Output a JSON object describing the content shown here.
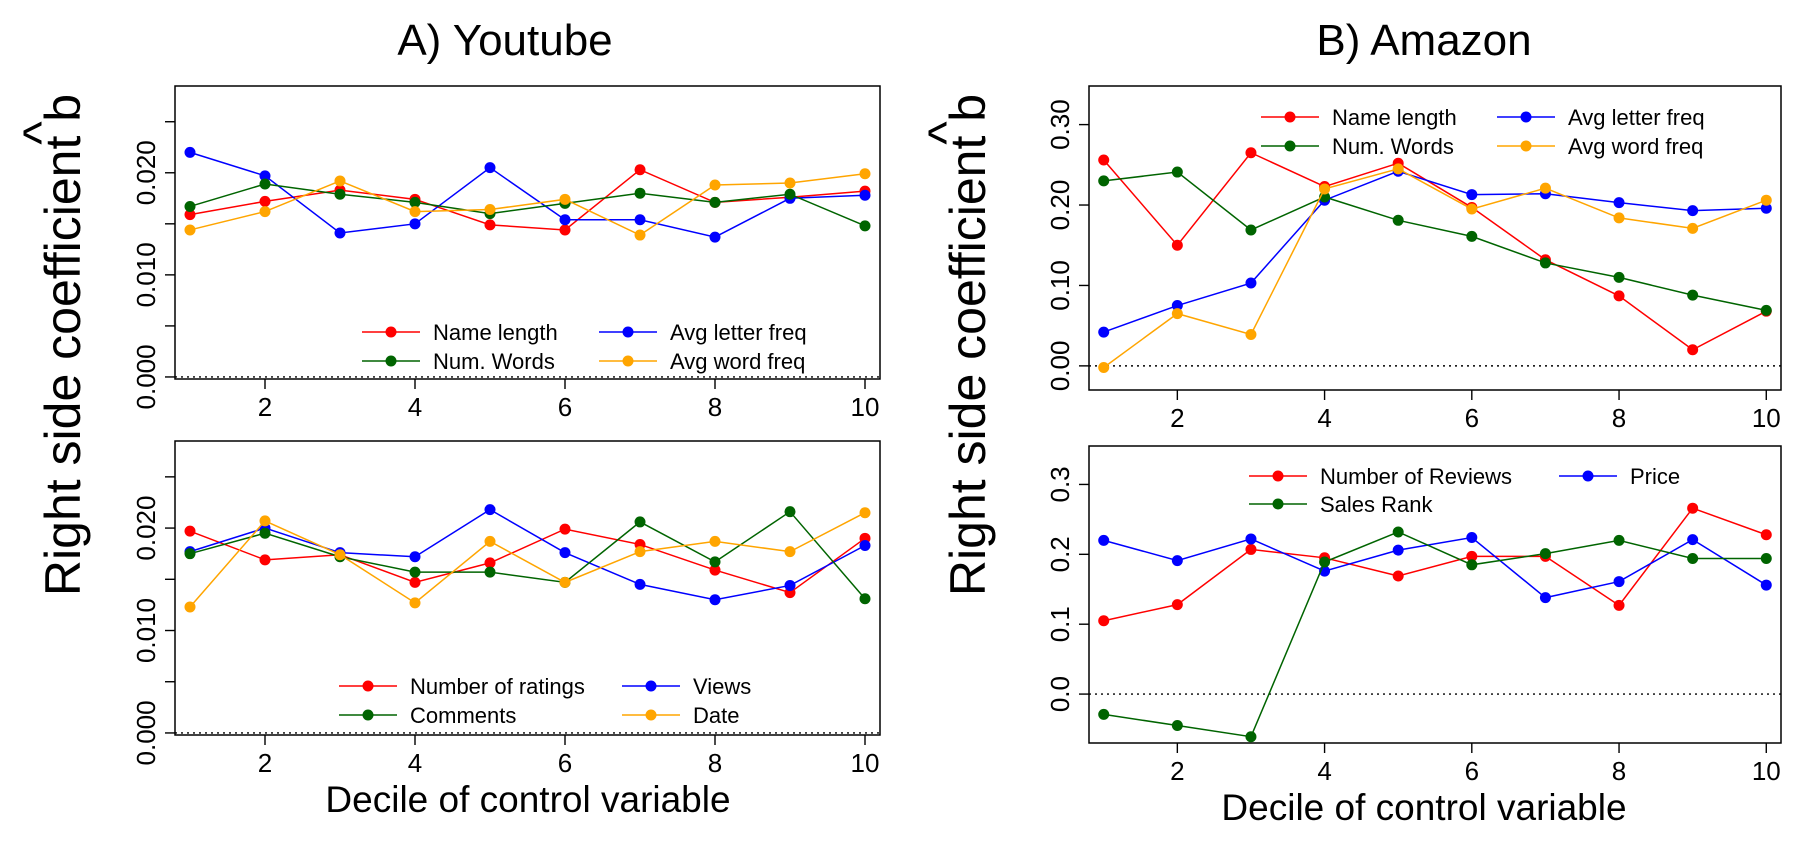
{
  "figure": {
    "panel_titles": [
      "A)  Youtube",
      "B)  Amazon"
    ],
    "ylabel": "Right side coefficient b",
    "ylabel_hat": "^",
    "xlabel": "Decile of control variable"
  },
  "colors": {
    "red": "#ff0000",
    "blue": "#0000ff",
    "green": "#006400",
    "orange": "#ffa500"
  },
  "chart_data": [
    {
      "panel": "youtube-top",
      "type": "line",
      "x": [
        1,
        2,
        3,
        4,
        5,
        6,
        7,
        8,
        9,
        10
      ],
      "xticks": [
        2,
        4,
        6,
        8,
        10
      ],
      "xtick_labels": [
        "2",
        "4",
        "6",
        "8",
        "10"
      ],
      "xlim": [
        0.8,
        10.2
      ],
      "yticks": [
        0.0,
        0.005,
        0.01,
        0.015,
        0.02,
        0.025
      ],
      "ytick_labels": [
        "0.000",
        "",
        "0.010",
        "",
        "0.020",
        ""
      ],
      "ylim": [
        -0.0002,
        0.0285
      ],
      "reference_line": 0,
      "legend_position": "bottom-right",
      "legend_columns": 2,
      "series": [
        {
          "name": "Name length",
          "color": "#ff0000",
          "values": [
            0.0159,
            0.0172,
            0.0183,
            0.0174,
            0.0149,
            0.0144,
            0.0203,
            0.0171,
            0.0176,
            0.0182
          ]
        },
        {
          "name": "Avg letter freq",
          "color": "#0000ff",
          "values": [
            0.022,
            0.0197,
            0.0141,
            0.015,
            0.0205,
            0.0154,
            0.0154,
            0.0137,
            0.0175,
            0.0178
          ]
        },
        {
          "name": "Num. Words",
          "color": "#006400",
          "values": [
            0.0167,
            0.0189,
            0.0179,
            0.0171,
            0.016,
            0.017,
            0.018,
            0.0171,
            0.0179,
            0.0148
          ]
        },
        {
          "name": "Avg word freq",
          "color": "#ffa500",
          "values": [
            0.0144,
            0.0162,
            0.0192,
            0.0162,
            0.0164,
            0.0174,
            0.0139,
            0.0188,
            0.019,
            0.0199
          ]
        }
      ]
    },
    {
      "panel": "youtube-bottom",
      "type": "line",
      "x": [
        1,
        2,
        3,
        4,
        5,
        6,
        7,
        8,
        9,
        10
      ],
      "xticks": [
        2,
        4,
        6,
        8,
        10
      ],
      "xtick_labels": [
        "2",
        "4",
        "6",
        "8",
        "10"
      ],
      "xlim": [
        0.8,
        10.2
      ],
      "yticks": [
        0.0,
        0.005,
        0.01,
        0.015,
        0.02,
        0.025
      ],
      "ytick_labels": [
        "0.000",
        "",
        "0.010",
        "",
        "0.020",
        ""
      ],
      "ylim": [
        -0.0002,
        0.0285
      ],
      "reference_line": 0,
      "legend_position": "bottom-right",
      "legend_columns": 2,
      "series": [
        {
          "name": "Number of ratings",
          "color": "#ff0000",
          "values": [
            0.0197,
            0.0169,
            0.0174,
            0.0147,
            0.0166,
            0.0199,
            0.0184,
            0.0159,
            0.0137,
            0.019
          ]
        },
        {
          "name": "Views",
          "color": "#0000ff",
          "values": [
            0.0177,
            0.02,
            0.0176,
            0.0172,
            0.0218,
            0.0176,
            0.0145,
            0.013,
            0.0144,
            0.0183
          ]
        },
        {
          "name": "Comments",
          "color": "#006400",
          "values": [
            0.0175,
            0.0195,
            0.0172,
            0.0157,
            0.0157,
            0.0147,
            0.0206,
            0.0167,
            0.0216,
            0.0131
          ]
        },
        {
          "name": "Date",
          "color": "#ffa500",
          "values": [
            0.0123,
            0.0207,
            0.0174,
            0.0127,
            0.0187,
            0.0147,
            0.0177,
            0.0187,
            0.0177,
            0.0215
          ]
        }
      ]
    },
    {
      "panel": "amazon-top",
      "type": "line",
      "x": [
        1,
        2,
        3,
        4,
        5,
        6,
        7,
        8,
        9,
        10
      ],
      "xticks": [
        2,
        4,
        6,
        8,
        10
      ],
      "xtick_labels": [
        "2",
        "4",
        "6",
        "8",
        "10"
      ],
      "xlim": [
        0.8,
        10.2
      ],
      "yticks": [
        0.0,
        0.1,
        0.2,
        0.3
      ],
      "ytick_labels": [
        "0.00",
        "0.10",
        "0.20",
        "0.30"
      ],
      "ylim": [
        -0.03,
        0.348
      ],
      "reference_line": 0,
      "legend_position": "top-right",
      "legend_columns": 2,
      "series": [
        {
          "name": "Name length",
          "color": "#ff0000",
          "values": [
            0.256,
            0.15,
            0.265,
            0.223,
            0.252,
            0.197,
            0.132,
            0.087,
            0.02,
            0.068
          ]
        },
        {
          "name": "Avg letter freq",
          "color": "#0000ff",
          "values": [
            0.042,
            0.075,
            0.103,
            0.206,
            0.242,
            0.213,
            0.214,
            0.203,
            0.193,
            0.196
          ]
        },
        {
          "name": "Num. Words",
          "color": "#006400",
          "values": [
            0.23,
            0.241,
            0.169,
            0.21,
            0.181,
            0.161,
            0.128,
            0.11,
            0.088,
            0.069
          ]
        },
        {
          "name": "Avg word freq",
          "color": "#ffa500",
          "values": [
            -0.002,
            0.065,
            0.039,
            0.22,
            0.245,
            0.195,
            0.221,
            0.184,
            0.171,
            0.206
          ]
        }
      ]
    },
    {
      "panel": "amazon-bottom",
      "type": "line",
      "x": [
        1,
        2,
        3,
        4,
        5,
        6,
        7,
        8,
        9,
        10
      ],
      "xticks": [
        2,
        4,
        6,
        8,
        10
      ],
      "xtick_labels": [
        "2",
        "4",
        "6",
        "8",
        "10"
      ],
      "xlim": [
        0.8,
        10.2
      ],
      "yticks": [
        0.0,
        0.1,
        0.2,
        0.3
      ],
      "ytick_labels": [
        "0.0",
        "0.1",
        "0.2",
        "0.3"
      ],
      "ylim": [
        -0.07,
        0.355
      ],
      "reference_line": 0,
      "legend_position": "top-right",
      "legend_columns": 2,
      "series": [
        {
          "name": "Number of Reviews",
          "color": "#ff0000",
          "values": [
            0.105,
            0.128,
            0.207,
            0.195,
            0.169,
            0.197,
            0.197,
            0.127,
            0.266,
            0.228
          ]
        },
        {
          "name": "Price",
          "color": "#0000ff",
          "values": [
            0.22,
            0.191,
            0.222,
            0.176,
            0.206,
            0.224,
            0.138,
            0.161,
            0.221,
            0.156
          ]
        },
        {
          "name": "Sales Rank",
          "color": "#006400",
          "values": [
            -0.029,
            -0.045,
            -0.061,
            0.189,
            0.232,
            0.185,
            0.201,
            0.22,
            0.194,
            0.194
          ]
        }
      ]
    }
  ]
}
